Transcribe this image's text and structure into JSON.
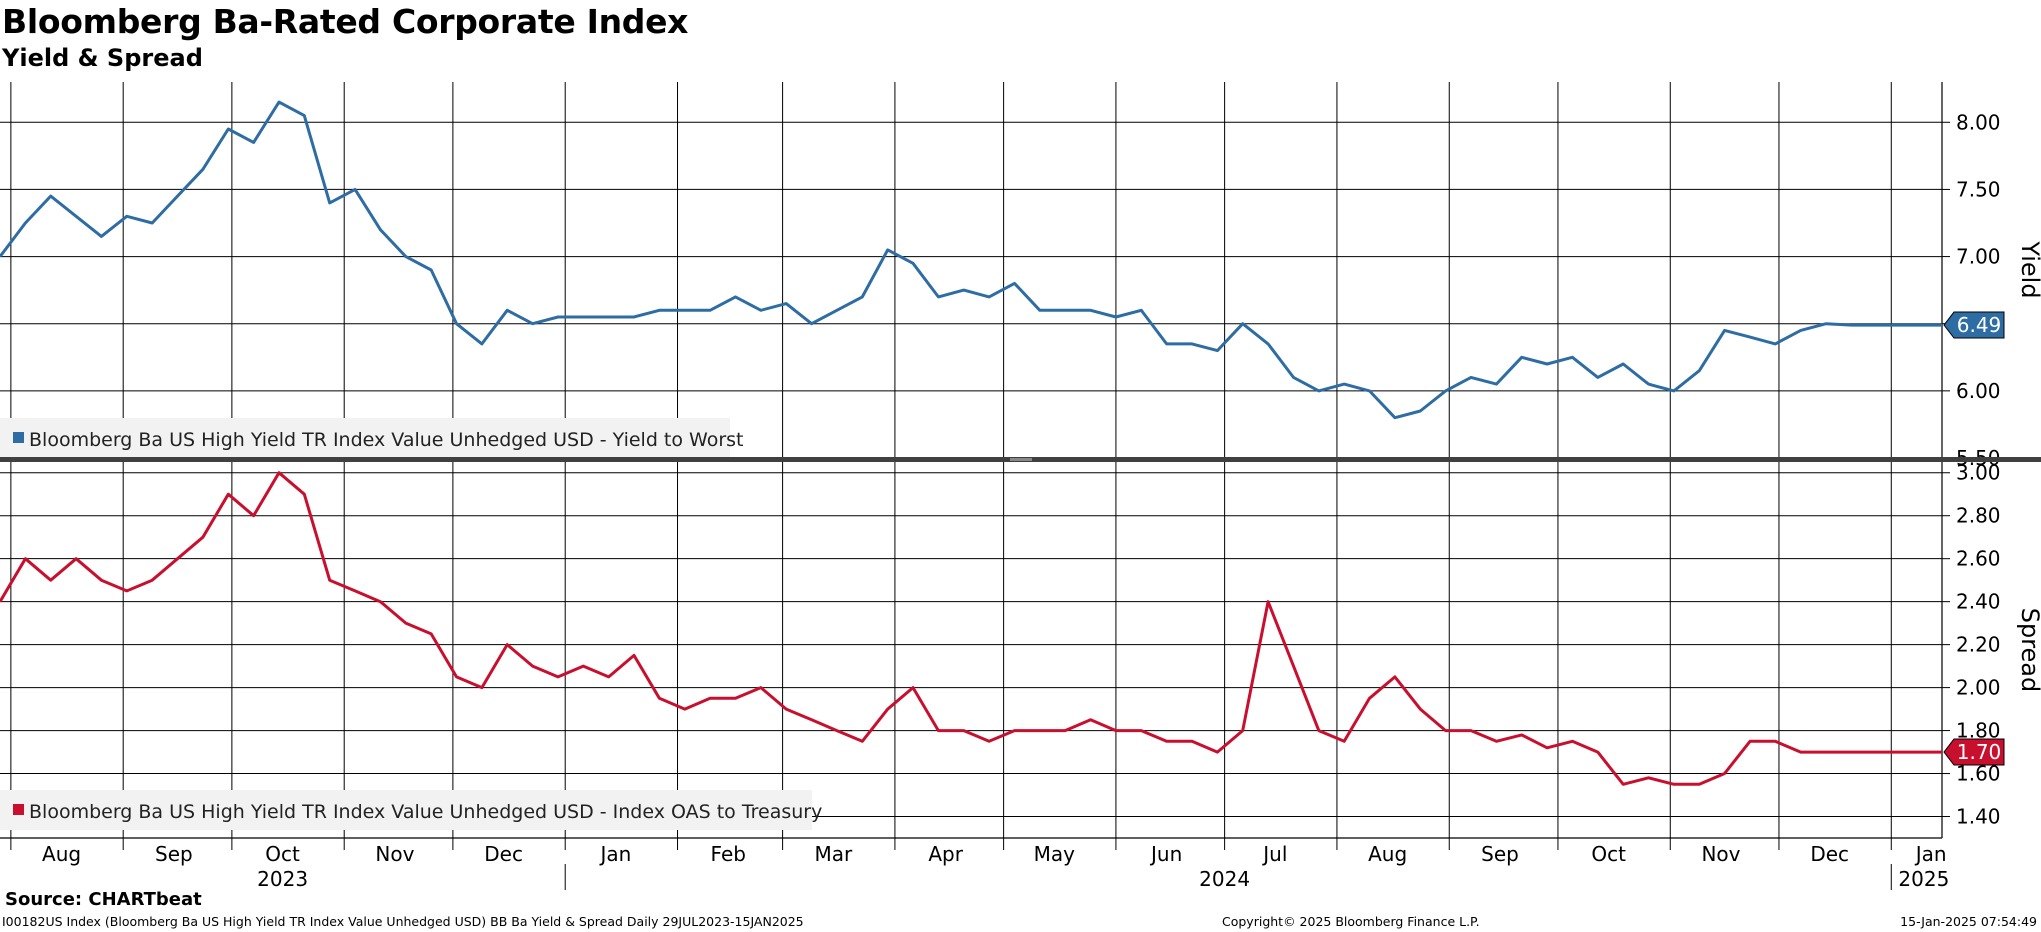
{
  "title": "Bloomberg Ba-Rated Corporate Index",
  "subtitle": "Yield & Spread",
  "source": "Source: CHARTbeat",
  "footer": {
    "left": "I00182US Index (Bloomberg Ba US High Yield  TR Index Value Unhedged USD) BB Ba Yield & Spread  Daily 29JUL2023-15JAN2025",
    "center": "Copyright© 2025 Bloomberg Finance L.P.",
    "right": "15-Jan-2025 07:54:49"
  },
  "colors": {
    "yield": "#2e6da4",
    "spread": "#c8102e"
  },
  "chart_data": [
    {
      "type": "line",
      "ylabel": "Yield",
      "ylim": [
        5.5,
        8.3
      ],
      "yticks": [
        "5.50",
        "6.00",
        "6.50",
        "7.00",
        "7.50",
        "8.00"
      ],
      "legend": "Bloomberg Ba US High Yield TR Index Value Unhedged USD - Yield to Worst",
      "last_value_label": "6.49",
      "grid": true,
      "legend_position": "bottom-left",
      "series": [
        {
          "x": [
            "2023-07-29",
            "2023-08-05",
            "2023-08-12",
            "2023-08-19",
            "2023-08-26",
            "2023-09-02",
            "2023-09-09",
            "2023-09-16",
            "2023-09-23",
            "2023-09-30",
            "2023-10-07",
            "2023-10-14",
            "2023-10-21",
            "2023-10-28",
            "2023-11-04",
            "2023-11-11",
            "2023-11-18",
            "2023-11-25",
            "2023-12-02",
            "2023-12-09",
            "2023-12-16",
            "2023-12-23",
            "2023-12-30",
            "2024-01-06",
            "2024-01-13",
            "2024-01-20",
            "2024-01-27",
            "2024-02-03",
            "2024-02-10",
            "2024-02-17",
            "2024-02-24",
            "2024-03-02",
            "2024-03-09",
            "2024-03-16",
            "2024-03-23",
            "2024-03-30",
            "2024-04-06",
            "2024-04-13",
            "2024-04-20",
            "2024-04-27",
            "2024-05-04",
            "2024-05-11",
            "2024-05-18",
            "2024-05-25",
            "2024-06-01",
            "2024-06-08",
            "2024-06-15",
            "2024-06-22",
            "2024-06-29",
            "2024-07-06",
            "2024-07-13",
            "2024-07-20",
            "2024-07-27",
            "2024-08-03",
            "2024-08-10",
            "2024-08-17",
            "2024-08-24",
            "2024-08-31",
            "2024-09-07",
            "2024-09-14",
            "2024-09-21",
            "2024-09-28",
            "2024-10-05",
            "2024-10-12",
            "2024-10-19",
            "2024-10-26",
            "2024-11-02",
            "2024-11-09",
            "2024-11-16",
            "2024-11-23",
            "2024-11-30",
            "2024-12-07",
            "2024-12-14",
            "2024-12-21",
            "2024-12-28",
            "2025-01-04",
            "2025-01-11",
            "2025-01-15"
          ],
          "values": [
            7.0,
            7.25,
            7.45,
            7.3,
            7.15,
            7.3,
            7.25,
            7.45,
            7.65,
            7.95,
            7.85,
            8.15,
            8.05,
            7.4,
            7.5,
            7.2,
            7.0,
            6.9,
            6.5,
            6.35,
            6.6,
            6.5,
            6.55,
            6.55,
            6.55,
            6.55,
            6.6,
            6.6,
            6.6,
            6.7,
            6.6,
            6.65,
            6.5,
            6.6,
            6.7,
            7.05,
            6.95,
            6.7,
            6.75,
            6.7,
            6.8,
            6.6,
            6.6,
            6.6,
            6.55,
            6.6,
            6.35,
            6.35,
            6.3,
            6.5,
            6.35,
            6.1,
            6.0,
            6.05,
            6.0,
            5.8,
            5.85,
            6.0,
            6.1,
            6.05,
            6.25,
            6.2,
            6.25,
            6.1,
            6.2,
            6.05,
            6.0,
            6.15,
            6.45,
            6.4,
            6.35,
            6.45,
            6.5,
            6.49,
            6.49,
            6.49,
            6.49,
            6.49
          ]
        }
      ]
    },
    {
      "type": "line",
      "ylabel": "Spread",
      "ylim": [
        1.3,
        3.05
      ],
      "yticks": [
        "1.40",
        "1.60",
        "1.80",
        "2.00",
        "2.20",
        "2.40",
        "2.60",
        "2.80",
        "3.00"
      ],
      "legend": "Bloomberg Ba US High Yield TR Index Value Unhedged USD - Index OAS to Treasury",
      "last_value_label": "1.70",
      "grid": true,
      "legend_position": "bottom-left",
      "series": [
        {
          "x": [
            "2023-07-29",
            "2023-08-05",
            "2023-08-12",
            "2023-08-19",
            "2023-08-26",
            "2023-09-02",
            "2023-09-09",
            "2023-09-16",
            "2023-09-23",
            "2023-09-30",
            "2023-10-07",
            "2023-10-14",
            "2023-10-21",
            "2023-10-28",
            "2023-11-04",
            "2023-11-11",
            "2023-11-18",
            "2023-11-25",
            "2023-12-02",
            "2023-12-09",
            "2023-12-16",
            "2023-12-23",
            "2023-12-30",
            "2024-01-06",
            "2024-01-13",
            "2024-01-20",
            "2024-01-27",
            "2024-02-03",
            "2024-02-10",
            "2024-02-17",
            "2024-02-24",
            "2024-03-02",
            "2024-03-09",
            "2024-03-16",
            "2024-03-23",
            "2024-03-30",
            "2024-04-06",
            "2024-04-13",
            "2024-04-20",
            "2024-04-27",
            "2024-05-04",
            "2024-05-11",
            "2024-05-18",
            "2024-05-25",
            "2024-06-01",
            "2024-06-08",
            "2024-06-15",
            "2024-06-22",
            "2024-06-29",
            "2024-07-06",
            "2024-07-13",
            "2024-07-20",
            "2024-07-27",
            "2024-08-03",
            "2024-08-10",
            "2024-08-17",
            "2024-08-24",
            "2024-08-31",
            "2024-09-07",
            "2024-09-14",
            "2024-09-21",
            "2024-09-28",
            "2024-10-05",
            "2024-10-12",
            "2024-10-19",
            "2024-10-26",
            "2024-11-02",
            "2024-11-09",
            "2024-11-16",
            "2024-11-23",
            "2024-11-30",
            "2024-12-07",
            "2024-12-14",
            "2024-12-21",
            "2024-12-28",
            "2025-01-04",
            "2025-01-11",
            "2025-01-15"
          ],
          "values": [
            2.4,
            2.6,
            2.5,
            2.6,
            2.5,
            2.45,
            2.5,
            2.6,
            2.7,
            2.9,
            2.8,
            3.0,
            2.9,
            2.5,
            2.45,
            2.4,
            2.3,
            2.25,
            2.05,
            2.0,
            2.2,
            2.1,
            2.05,
            2.1,
            2.05,
            2.15,
            1.95,
            1.9,
            1.95,
            1.95,
            2.0,
            1.9,
            1.85,
            1.8,
            1.75,
            1.9,
            2.0,
            1.8,
            1.8,
            1.75,
            1.8,
            1.8,
            1.8,
            1.85,
            1.8,
            1.8,
            1.75,
            1.75,
            1.7,
            1.8,
            2.4,
            2.1,
            1.8,
            1.75,
            1.95,
            2.05,
            1.9,
            1.8,
            1.8,
            1.75,
            1.78,
            1.72,
            1.75,
            1.7,
            1.55,
            1.58,
            1.55,
            1.55,
            1.6,
            1.75,
            1.75,
            1.7,
            1.7,
            1.7,
            1.7,
            1.7,
            1.7,
            1.7
          ]
        }
      ]
    }
  ],
  "x_axis": {
    "start": "2023-07-29",
    "end": "2025-01-15",
    "months": [
      {
        "label": "Aug",
        "date": "2023-08-15"
      },
      {
        "label": "Sep",
        "date": "2023-09-15"
      },
      {
        "label": "Oct",
        "date": "2023-10-15"
      },
      {
        "label": "Nov",
        "date": "2023-11-15"
      },
      {
        "label": "Dec",
        "date": "2023-12-15"
      },
      {
        "label": "Jan",
        "date": "2024-01-15"
      },
      {
        "label": "Feb",
        "date": "2024-02-15"
      },
      {
        "label": "Mar",
        "date": "2024-03-15"
      },
      {
        "label": "Apr",
        "date": "2024-04-15"
      },
      {
        "label": "May",
        "date": "2024-05-15"
      },
      {
        "label": "Jun",
        "date": "2024-06-15"
      },
      {
        "label": "Jul",
        "date": "2024-07-15"
      },
      {
        "label": "Aug",
        "date": "2024-08-15"
      },
      {
        "label": "Sep",
        "date": "2024-09-15"
      },
      {
        "label": "Oct",
        "date": "2024-10-15"
      },
      {
        "label": "Nov",
        "date": "2024-11-15"
      },
      {
        "label": "Dec",
        "date": "2024-12-15"
      },
      {
        "label": "Jan",
        "date": "2025-01-12"
      }
    ],
    "gridlines": [
      "2023-08-01",
      "2023-09-01",
      "2023-10-01",
      "2023-11-01",
      "2023-12-01",
      "2024-01-01",
      "2024-02-01",
      "2024-03-01",
      "2024-04-01",
      "2024-05-01",
      "2024-06-01",
      "2024-07-01",
      "2024-08-01",
      "2024-09-01",
      "2024-10-01",
      "2024-11-01",
      "2024-12-01",
      "2025-01-01"
    ],
    "years": [
      {
        "label": "2023",
        "date": "2023-10-15"
      },
      {
        "label": "2024",
        "date": "2024-07-01"
      },
      {
        "label": "2025",
        "date": "2025-01-10"
      }
    ],
    "year_separators": [
      "2024-01-01",
      "2025-01-01"
    ]
  }
}
